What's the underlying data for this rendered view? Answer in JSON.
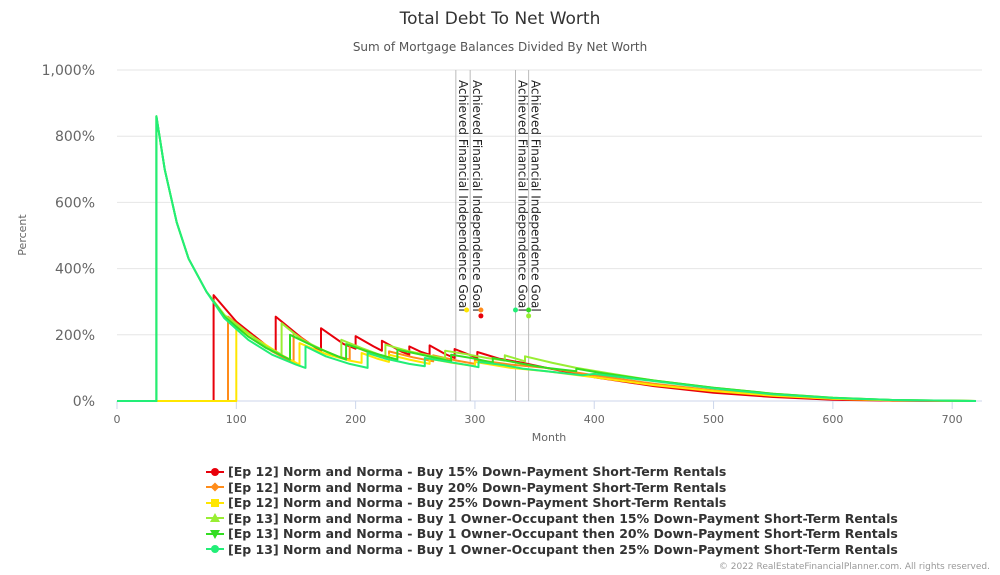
{
  "chart_data": {
    "type": "line",
    "title": "Total Debt To Net Worth",
    "subtitle": "Sum of Mortgage Balances Divided By Net Worth",
    "xlabel": "Month",
    "ylabel": "Percent",
    "xlim": [
      0,
      725
    ],
    "ylim": [
      0,
      1000
    ],
    "x_ticks": [
      0,
      100,
      200,
      300,
      400,
      500,
      600,
      700
    ],
    "y_ticks": [
      0,
      200,
      400,
      600,
      800,
      1000
    ],
    "y_tick_labels": [
      "0%",
      "200%",
      "400%",
      "600%",
      "800%",
      "1,000%"
    ],
    "grid": "horizontal",
    "legend_position": "bottom",
    "plot_bands_labels": [
      {
        "x": 284,
        "label": "Achieved Financial Independence Goal"
      },
      {
        "x": 296,
        "label": "Achieved Financial Independence Goal"
      },
      {
        "x": 334,
        "label": "Achieved Financial Independence Goal"
      },
      {
        "x": 345,
        "label": "Achieved Financial Independence Goal"
      }
    ],
    "series": [
      {
        "name": "[Ep 12] Norm and Norma - Buy 15% Down-Payment Short-Term Rentals",
        "color": "#e8000b",
        "marker": "circle",
        "points": [
          [
            0,
            0
          ],
          [
            81,
            0
          ],
          [
            81,
            320
          ],
          [
            100,
            240
          ],
          [
            133,
            145
          ],
          [
            133,
            255
          ],
          [
            155,
            190
          ],
          [
            171,
            150
          ],
          [
            171,
            220
          ],
          [
            190,
            172
          ],
          [
            200,
            158
          ],
          [
            200,
            196
          ],
          [
            215,
            165
          ],
          [
            222,
            152
          ],
          [
            222,
            182
          ],
          [
            238,
            150
          ],
          [
            245,
            140
          ],
          [
            245,
            165
          ],
          [
            255,
            148
          ],
          [
            262,
            140
          ],
          [
            262,
            168
          ],
          [
            275,
            142
          ],
          [
            283,
            130
          ],
          [
            283,
            157
          ],
          [
            295,
            140
          ],
          [
            302,
            130
          ],
          [
            302,
            148
          ],
          [
            320,
            128
          ],
          [
            340,
            115
          ],
          [
            360,
            100
          ],
          [
            400,
            72
          ],
          [
            450,
            45
          ],
          [
            500,
            25
          ],
          [
            550,
            12
          ],
          [
            600,
            4
          ],
          [
            650,
            1
          ],
          [
            720,
            0
          ]
        ],
        "fi_marker": {
          "x": 305,
          "y": 257
        }
      },
      {
        "name": "[Ep 12] Norm and Norma - Buy 20% Down-Payment Short-Term Rentals",
        "color": "#ff8c1a",
        "marker": "diamond",
        "points": [
          [
            0,
            0
          ],
          [
            93,
            0
          ],
          [
            93,
            255
          ],
          [
            110,
            205
          ],
          [
            130,
            150
          ],
          [
            148,
            115
          ],
          [
            148,
            205
          ],
          [
            165,
            165
          ],
          [
            185,
            135
          ],
          [
            195,
            125
          ],
          [
            195,
            170
          ],
          [
            210,
            148
          ],
          [
            228,
            130
          ],
          [
            228,
            150
          ],
          [
            248,
            132
          ],
          [
            265,
            120
          ],
          [
            265,
            138
          ],
          [
            285,
            122
          ],
          [
            300,
            112
          ],
          [
            300,
            125
          ],
          [
            330,
            110
          ],
          [
            360,
            100
          ],
          [
            400,
            78
          ],
          [
            450,
            52
          ],
          [
            500,
            32
          ],
          [
            550,
            17
          ],
          [
            600,
            7
          ],
          [
            650,
            2
          ],
          [
            720,
            0
          ]
        ],
        "fi_marker": {
          "x": 305,
          "y": 275
        }
      },
      {
        "name": "[Ep 12] Norm and Norma - Buy 25% Down-Payment Short-Term Rentals",
        "color": "#ffe600",
        "marker": "square",
        "points": [
          [
            0,
            0
          ],
          [
            100,
            0
          ],
          [
            100,
            225
          ],
          [
            120,
            180
          ],
          [
            140,
            135
          ],
          [
            153,
            110
          ],
          [
            153,
            175
          ],
          [
            175,
            142
          ],
          [
            195,
            122
          ],
          [
            205,
            115
          ],
          [
            205,
            145
          ],
          [
            218,
            128
          ],
          [
            228,
            118
          ],
          [
            228,
            140
          ],
          [
            245,
            125
          ],
          [
            262,
            112
          ],
          [
            262,
            128
          ],
          [
            280,
            116
          ],
          [
            300,
            105
          ],
          [
            300,
            118
          ],
          [
            330,
            100
          ],
          [
            360,
            90
          ],
          [
            400,
            72
          ],
          [
            450,
            48
          ],
          [
            500,
            30
          ],
          [
            550,
            16
          ],
          [
            600,
            7
          ],
          [
            650,
            2
          ],
          [
            720,
            0
          ]
        ],
        "fi_marker": {
          "x": 293,
          "y": 275
        }
      },
      {
        "name": "[Ep 13] Norm and Norma - Buy 1 Owner-Occupant then 15% Down-Payment Short-Term Rentals",
        "color": "#99ee33",
        "marker": "triangle",
        "points": [
          [
            0,
            0
          ],
          [
            33,
            0
          ],
          [
            33,
            860
          ],
          [
            40,
            700
          ],
          [
            50,
            540
          ],
          [
            60,
            430
          ],
          [
            75,
            330
          ],
          [
            90,
            260
          ],
          [
            110,
            205
          ],
          [
            125,
            165
          ],
          [
            138,
            140
          ],
          [
            138,
            235
          ],
          [
            155,
            185
          ],
          [
            175,
            150
          ],
          [
            188,
            130
          ],
          [
            188,
            185
          ],
          [
            205,
            160
          ],
          [
            220,
            140
          ],
          [
            225,
            135
          ],
          [
            225,
            170
          ],
          [
            245,
            150
          ],
          [
            265,
            135
          ],
          [
            275,
            128
          ],
          [
            275,
            152
          ],
          [
            295,
            140
          ],
          [
            310,
            130
          ],
          [
            325,
            122
          ],
          [
            325,
            138
          ],
          [
            342,
            120
          ],
          [
            342,
            135
          ],
          [
            365,
            115
          ],
          [
            385,
            100
          ],
          [
            410,
            85
          ],
          [
            450,
            62
          ],
          [
            500,
            40
          ],
          [
            550,
            22
          ],
          [
            600,
            10
          ],
          [
            650,
            3
          ],
          [
            720,
            0
          ]
        ],
        "fi_marker": {
          "x": 345,
          "y": 257
        }
      },
      {
        "name": "[Ep 13] Norm and Norma - Buy 1 Owner-Occupant then 20% Down-Payment Short-Term Rentals",
        "color": "#33dd22",
        "marker": "triangle-down",
        "points": [
          [
            0,
            0
          ],
          [
            33,
            0
          ],
          [
            33,
            860
          ],
          [
            40,
            700
          ],
          [
            50,
            540
          ],
          [
            60,
            430
          ],
          [
            75,
            330
          ],
          [
            90,
            255
          ],
          [
            110,
            195
          ],
          [
            125,
            160
          ],
          [
            145,
            125
          ],
          [
            145,
            200
          ],
          [
            165,
            165
          ],
          [
            185,
            135
          ],
          [
            192,
            125
          ],
          [
            192,
            172
          ],
          [
            210,
            150
          ],
          [
            225,
            135
          ],
          [
            235,
            125
          ],
          [
            235,
            155
          ],
          [
            255,
            140
          ],
          [
            270,
            128
          ],
          [
            280,
            120
          ],
          [
            280,
            140
          ],
          [
            300,
            128
          ],
          [
            315,
            115
          ],
          [
            315,
            130
          ],
          [
            340,
            112
          ],
          [
            360,
            100
          ],
          [
            385,
            90
          ],
          [
            385,
            98
          ],
          [
            405,
            85
          ],
          [
            450,
            62
          ],
          [
            500,
            40
          ],
          [
            550,
            22
          ],
          [
            600,
            10
          ],
          [
            650,
            3
          ],
          [
            720,
            0
          ]
        ],
        "fi_marker": {
          "x": 345,
          "y": 275
        }
      },
      {
        "name": "[Ep 13] Norm and Norma - Buy 1 Owner-Occupant then 25% Down-Payment Short-Term Rentals",
        "color": "#22ee77",
        "marker": "circle",
        "points": [
          [
            0,
            0
          ],
          [
            33,
            0
          ],
          [
            33,
            860
          ],
          [
            40,
            700
          ],
          [
            50,
            540
          ],
          [
            60,
            430
          ],
          [
            75,
            330
          ],
          [
            90,
            250
          ],
          [
            110,
            185
          ],
          [
            130,
            140
          ],
          [
            150,
            110
          ],
          [
            158,
            100
          ],
          [
            158,
            165
          ],
          [
            175,
            135
          ],
          [
            195,
            112
          ],
          [
            210,
            100
          ],
          [
            210,
            145
          ],
          [
            225,
            128
          ],
          [
            245,
            112
          ],
          [
            258,
            105
          ],
          [
            258,
            130
          ],
          [
            278,
            118
          ],
          [
            295,
            108
          ],
          [
            303,
            102
          ],
          [
            303,
            118
          ],
          [
            325,
            108
          ],
          [
            340,
            98
          ],
          [
            360,
            90
          ],
          [
            390,
            78
          ],
          [
            400,
            82
          ],
          [
            450,
            60
          ],
          [
            500,
            38
          ],
          [
            550,
            20
          ],
          [
            600,
            9
          ],
          [
            650,
            3
          ],
          [
            720,
            0
          ]
        ],
        "fi_marker": {
          "x": 334,
          "y": 275
        }
      }
    ]
  },
  "credits": "© 2022 RealEstateFinancialPlanner.com. All rights reserved."
}
